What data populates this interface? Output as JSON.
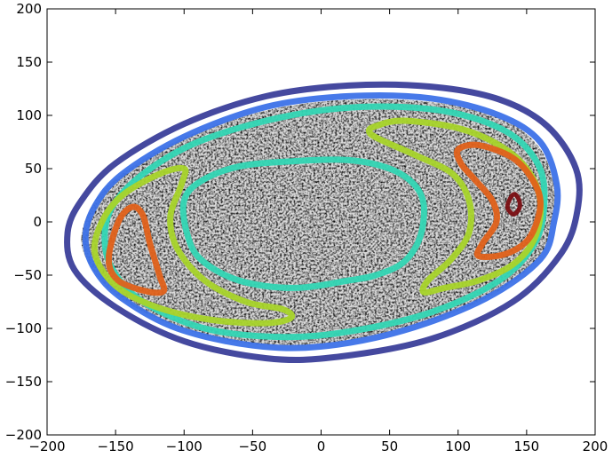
{
  "chart_data": {
    "type": "contour",
    "title": "",
    "xlabel": "",
    "ylabel": "",
    "xlim": [
      -200,
      200
    ],
    "ylim": [
      -200,
      200
    ],
    "xticks": [
      -200,
      -150,
      -100,
      -50,
      0,
      50,
      100,
      150,
      200
    ],
    "yticks": [
      -200,
      -150,
      -100,
      -50,
      0,
      50,
      100,
      150,
      200
    ],
    "grid": false,
    "background": "grayscale noise image inside an elliptical region (roughly x from -175 to 170, y from -115 to 115)",
    "contours": [
      {
        "level": 1,
        "color": "#3b3f9a",
        "points": [
          [
            -185,
            -10
          ],
          [
            -175,
            20
          ],
          [
            -150,
            55
          ],
          [
            -100,
            92
          ],
          [
            -40,
            118
          ],
          [
            20,
            128
          ],
          [
            80,
            127
          ],
          [
            130,
            115
          ],
          [
            165,
            90
          ],
          [
            186,
            50
          ],
          [
            187,
            10
          ],
          [
            175,
            -30
          ],
          [
            140,
            -75
          ],
          [
            80,
            -110
          ],
          [
            10,
            -127
          ],
          [
            -40,
            -128
          ],
          [
            -100,
            -112
          ],
          [
            -150,
            -80
          ],
          [
            -180,
            -45
          ]
        ]
      },
      {
        "level": 2,
        "color": "#3d72e8",
        "points": [
          [
            -172,
            -15
          ],
          [
            -165,
            15
          ],
          [
            -145,
            45
          ],
          [
            -100,
            80
          ],
          [
            -40,
            108
          ],
          [
            20,
            118
          ],
          [
            80,
            116
          ],
          [
            130,
            100
          ],
          [
            160,
            75
          ],
          [
            172,
            35
          ],
          [
            170,
            0
          ],
          [
            160,
            -35
          ],
          [
            120,
            -72
          ],
          [
            60,
            -102
          ],
          [
            0,
            -117
          ],
          [
            -50,
            -116
          ],
          [
            -105,
            -100
          ],
          [
            -145,
            -72
          ],
          [
            -165,
            -45
          ]
        ]
      },
      {
        "level": 3,
        "color": "#33d6b4",
        "points": [
          [
            -158,
            -15
          ],
          [
            -152,
            15
          ],
          [
            -130,
            45
          ],
          [
            -90,
            75
          ],
          [
            -30,
            98
          ],
          [
            30,
            108
          ],
          [
            90,
            104
          ],
          [
            135,
            85
          ],
          [
            158,
            55
          ],
          [
            163,
            20
          ],
          [
            156,
            -20
          ],
          [
            130,
            -55
          ],
          [
            80,
            -85
          ],
          [
            20,
            -103
          ],
          [
            -30,
            -108
          ],
          [
            -85,
            -100
          ],
          [
            -130,
            -75
          ],
          [
            -152,
            -45
          ]
        ]
      },
      {
        "level": 3,
        "color": "#33d6b4",
        "points": [
          [
            -100,
            20
          ],
          [
            -88,
            38
          ],
          [
            -60,
            52
          ],
          [
            -20,
            57
          ],
          [
            20,
            58
          ],
          [
            50,
            50
          ],
          [
            68,
            35
          ],
          [
            75,
            15
          ],
          [
            72,
            -15
          ],
          [
            60,
            -38
          ],
          [
            40,
            -50
          ],
          [
            20,
            -55
          ],
          [
            -20,
            -62
          ],
          [
            -60,
            -55
          ],
          [
            -88,
            -35
          ],
          [
            -98,
            -10
          ]
        ]
      },
      {
        "level": 4,
        "color": "#a8d42a",
        "points": [
          [
            -165,
            -30
          ],
          [
            -160,
            0
          ],
          [
            -145,
            25
          ],
          [
            -118,
            45
          ],
          [
            -100,
            50
          ],
          [
            -102,
            35
          ],
          [
            -110,
            5
          ],
          [
            -105,
            -25
          ],
          [
            -85,
            -55
          ],
          [
            -55,
            -75
          ],
          [
            -28,
            -82
          ],
          [
            -22,
            -90
          ],
          [
            -40,
            -95
          ],
          [
            -80,
            -92
          ],
          [
            -120,
            -80
          ],
          [
            -150,
            -60
          ]
        ]
      },
      {
        "level": 4,
        "color": "#a8d42a",
        "points": [
          [
            40,
            90
          ],
          [
            60,
            95
          ],
          [
            100,
            88
          ],
          [
            130,
            72
          ],
          [
            150,
            50
          ],
          [
            160,
            20
          ],
          [
            156,
            -15
          ],
          [
            140,
            -40
          ],
          [
            115,
            -55
          ],
          [
            90,
            -62
          ],
          [
            75,
            -66
          ],
          [
            78,
            -55
          ],
          [
            95,
            -35
          ],
          [
            108,
            -10
          ],
          [
            108,
            20
          ],
          [
            96,
            45
          ],
          [
            70,
            62
          ],
          [
            42,
            78
          ],
          [
            35,
            85
          ]
        ]
      },
      {
        "level": 5,
        "color": "#e0611a",
        "points": [
          [
            -155,
            -35
          ],
          [
            -148,
            0
          ],
          [
            -138,
            14
          ],
          [
            -130,
            6
          ],
          [
            -125,
            -20
          ],
          [
            -118,
            -50
          ],
          [
            -115,
            -65
          ],
          [
            -128,
            -65
          ],
          [
            -148,
            -55
          ]
        ]
      },
      {
        "level": 5,
        "color": "#e0611a",
        "points": [
          [
            100,
            68
          ],
          [
            115,
            72
          ],
          [
            140,
            60
          ],
          [
            155,
            38
          ],
          [
            160,
            15
          ],
          [
            152,
            -15
          ],
          [
            135,
            -30
          ],
          [
            115,
            -32
          ],
          [
            118,
            -20
          ],
          [
            128,
            0
          ],
          [
            125,
            20
          ],
          [
            112,
            40
          ],
          [
            102,
            55
          ]
        ]
      },
      {
        "level": 6,
        "color": "#7a0e12",
        "points": [
          [
            136,
            14
          ],
          [
            138,
            22
          ],
          [
            141,
            26
          ],
          [
            144,
            22
          ],
          [
            145,
            14
          ],
          [
            142,
            8
          ],
          [
            139,
            8
          ]
        ]
      }
    ]
  },
  "colors": {
    "background": "#ffffff",
    "axes": "#000000"
  }
}
